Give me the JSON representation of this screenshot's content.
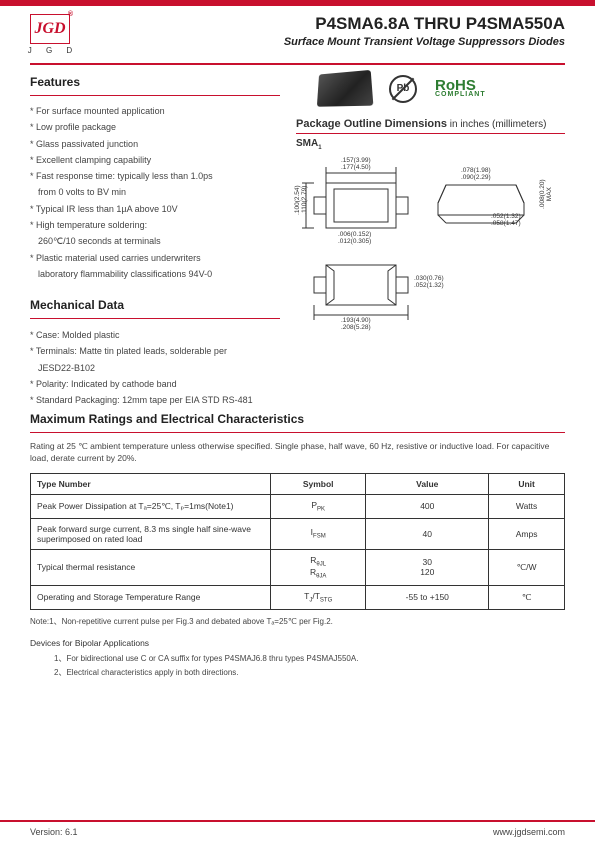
{
  "header": {
    "logo_letters": "JGD",
    "logo_sub": "J G D",
    "title": "P4SMA6.8A THRU P4SMA550A",
    "subtitle": "Surface Mount Transient Voltage Suppressors Diodes"
  },
  "features": {
    "title": "Features",
    "items": [
      "For surface mounted application",
      "Low profile package",
      "Glass passivated junction",
      "Excellent clamping capability",
      "Fast response time: typically less than 1.0ps",
      "from 0 volts to BV min",
      "Typical IR less than 1µA above 10V",
      "High temperature soldering:",
      "260℃/10 seconds at terminals",
      "Plastic material used carries underwriters",
      "laboratory flammability classifications 94V-0"
    ],
    "indent_indices": [
      5,
      8,
      10
    ]
  },
  "badges": {
    "pb": "Pb",
    "rohs": "RoHS",
    "rohs_sub": "COMPLIANT"
  },
  "package": {
    "title_bold": "Package Outline Dimensions",
    "title_light": " in inches (millimeters)",
    "sma_label": "SMA",
    "dims": {
      "top_w_in": ".157(3.99)",
      "top_w_mm": ".177(4.50)",
      "left_h_top": ".100(2.54)",
      "left_h_bot": ".110(2.79)",
      "bot_gap_top": ".006(0.152)",
      "bot_gap_bot": ".012(0.305)",
      "right_top_a": ".078(1.98)",
      "right_top_b": ".090(2.29)",
      "far_right_a": ".008(0.20)",
      "far_right_b": "MAX",
      "right_mid_a": ".052(1.32)",
      "right_mid_b": ".058(1.47)",
      "bot2_a": ".030(0.76)",
      "bot2_b": ".052(1.32)",
      "bot3_a": ".193(4.90)",
      "bot3_b": ".208(5.28)"
    }
  },
  "mechanical": {
    "title": "Mechanical Data",
    "items": [
      "Case: Molded plastic",
      "Terminals: Matte tin plated leads, solderable per",
      "JESD22-B102",
      "Polarity: Indicated by cathode band",
      "Standard Packaging: 12mm tape per EIA STD RS-481"
    ],
    "indent_indices": [
      2
    ]
  },
  "max_ratings": {
    "title": "Maximum Ratings and Electrical Characteristics",
    "note": "Rating at 25 ℃ ambient temperature unless otherwise specified. Single phase, half wave, 60 Hz, resistive or inductive load. For capacitive load, derate current by 20%.",
    "columns": [
      "Type Number",
      "Symbol",
      "Value",
      "Unit"
    ],
    "rows": [
      {
        "name": "Peak Power Dissipation at Tₐ=25℃, Tₚ=1ms(Note1)",
        "symbol_html": "P<span class='sub'>PK</span>",
        "value": "400",
        "unit": "Watts"
      },
      {
        "name": "Peak forward surge current, 8.3 ms single half sine-wave superimposed on rated load",
        "symbol_html": "I<span class='sub'>FSM</span>",
        "value": "40",
        "unit": "Amps"
      },
      {
        "name": "Typical thermal resistance",
        "symbol_html": "R<span class='sub'>θJL</span><br>R<span class='sub'>θJA</span>",
        "value": "30<br>120",
        "unit": "℃/W"
      },
      {
        "name": "Operating and Storage Temperature Range",
        "symbol_html": "T<span class='sub'>J</span>/T<span class='sub'>STG</span>",
        "value": "-55 to +150",
        "unit": "℃"
      }
    ],
    "footnote": "Note:1、Non-repetitive current pulse per Fig.3 and debated above Tₐ=25℃ per Fig.2."
  },
  "bipolar": {
    "title": "Devices for Bipolar Applications",
    "items": [
      "1、For bidirectional use C or CA suffix for types P4SMAJ6.8 thru types P4SMAJ550A.",
      "2、Electrical characteristics apply in both directions."
    ]
  },
  "footer": {
    "version": "Version: 6.1",
    "url": "www.jgdsemi.com"
  },
  "colors": {
    "brand_red": "#c8102e",
    "rohs_green": "#2e7d32",
    "text": "#333333"
  }
}
